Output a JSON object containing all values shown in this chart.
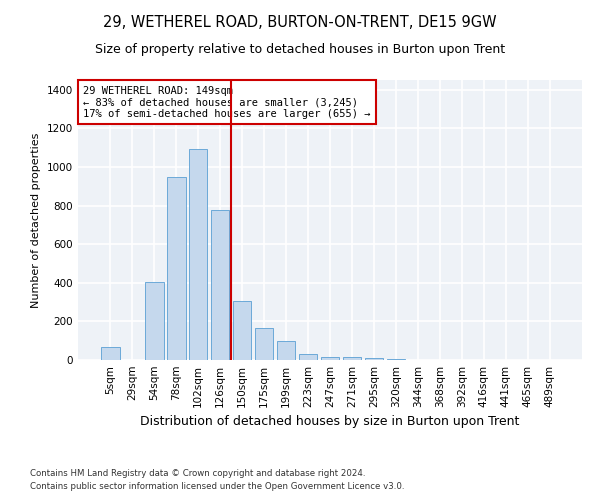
{
  "title": "29, WETHEREL ROAD, BURTON-ON-TRENT, DE15 9GW",
  "subtitle": "Size of property relative to detached houses in Burton upon Trent",
  "xlabel": "Distribution of detached houses by size in Burton upon Trent",
  "ylabel": "Number of detached properties",
  "footnote1": "Contains HM Land Registry data © Crown copyright and database right 2024.",
  "footnote2": "Contains public sector information licensed under the Open Government Licence v3.0.",
  "bar_labels": [
    "5sqm",
    "29sqm",
    "54sqm",
    "78sqm",
    "102sqm",
    "126sqm",
    "150sqm",
    "175sqm",
    "199sqm",
    "223sqm",
    "247sqm",
    "271sqm",
    "295sqm",
    "320sqm",
    "344sqm",
    "368sqm",
    "392sqm",
    "416sqm",
    "441sqm",
    "465sqm",
    "489sqm"
  ],
  "bar_values": [
    65,
    0,
    405,
    950,
    1095,
    775,
    305,
    165,
    100,
    32,
    14,
    14,
    8,
    5,
    0,
    0,
    0,
    0,
    0,
    0,
    0
  ],
  "bar_color": "#c5d8ed",
  "bar_edge_color": "#5a9fd4",
  "background_color": "#eef2f7",
  "grid_color": "#ffffff",
  "annotation_line_color": "#cc0000",
  "annotation_box_text": "29 WETHEREL ROAD: 149sqm\n← 83% of detached houses are smaller (3,245)\n17% of semi-detached houses are larger (655) →",
  "annotation_box_color": "#cc0000",
  "ylim": [
    0,
    1450
  ],
  "yticks": [
    0,
    200,
    400,
    600,
    800,
    1000,
    1200,
    1400
  ],
  "title_fontsize": 10.5,
  "subtitle_fontsize": 9,
  "xlabel_fontsize": 9,
  "ylabel_fontsize": 8,
  "annotation_fontsize": 7.5,
  "tick_fontsize": 7.5,
  "footnote_fontsize": 6.2
}
